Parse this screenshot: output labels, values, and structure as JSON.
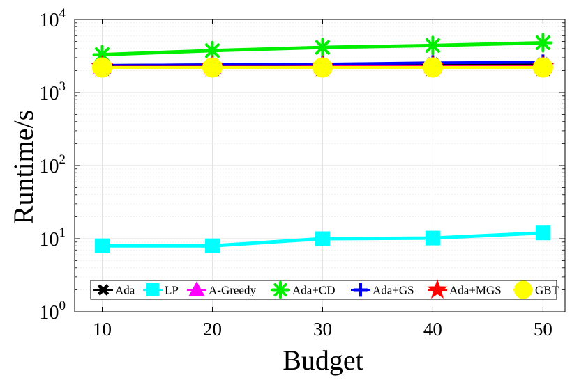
{
  "chart_data": {
    "type": "line",
    "title": "",
    "xlabel": "Budget",
    "ylabel": "Runtime/s",
    "x": [
      10,
      20,
      30,
      40,
      50
    ],
    "xlim": [
      7.5,
      52
    ],
    "xticks": [
      10,
      20,
      30,
      40,
      50
    ],
    "yscale": "log",
    "ylim": [
      1,
      10000
    ],
    "yticks": [
      {
        "value": 1,
        "base": "10",
        "exp": "0"
      },
      {
        "value": 10,
        "base": "10",
        "exp": "1"
      },
      {
        "value": 100,
        "base": "10",
        "exp": "2"
      },
      {
        "value": 1000,
        "base": "10",
        "exp": "3"
      },
      {
        "value": 10000,
        "base": "10",
        "exp": "4"
      }
    ],
    "grid": true,
    "legend_position": "bottom",
    "series": [
      {
        "name": "Ada",
        "color": "#000000",
        "marker": "x-cross",
        "values": [
          2350,
          2400,
          2450,
          2500,
          2500
        ]
      },
      {
        "name": "LP",
        "color": "#00ffff",
        "marker": "square",
        "values": [
          8,
          8,
          10,
          10.2,
          12
        ]
      },
      {
        "name": "A-Greedy",
        "color": "#ff00ff",
        "marker": "triangle",
        "values": [
          2250,
          2250,
          2300,
          2300,
          2300
        ]
      },
      {
        "name": "Ada+CD",
        "color": "#00ee00",
        "marker": "asterisk",
        "values": [
          3300,
          3750,
          4150,
          4400,
          4800
        ]
      },
      {
        "name": "Ada+GS",
        "color": "#0000ff",
        "marker": "plus",
        "values": [
          2350,
          2400,
          2450,
          2550,
          2600
        ]
      },
      {
        "name": "Ada+MGS",
        "color": "#ff0000",
        "marker": "star",
        "values": [
          2250,
          2250,
          2250,
          2250,
          2250
        ]
      },
      {
        "name": "GBT",
        "color": "#ffff00",
        "marker": "circle",
        "values": [
          2200,
          2200,
          2200,
          2200,
          2200
        ]
      }
    ]
  }
}
